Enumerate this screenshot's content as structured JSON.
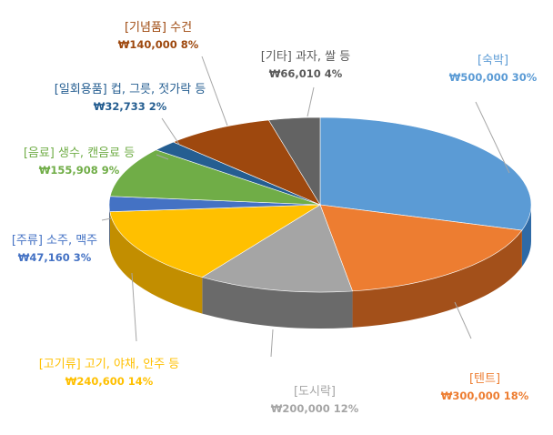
{
  "chart_data": {
    "type": "pie",
    "style": "3d",
    "title": "",
    "legend": "none",
    "slices": [
      {
        "label": "[숙박]",
        "value_text": "₩500,000 30%",
        "value": 500000,
        "percent": 30,
        "color": "#5B9BD5",
        "side_color": "#2E6AA6"
      },
      {
        "label": "[텐트]",
        "value_text": "₩300,000 18%",
        "value": 300000,
        "percent": 18,
        "color": "#ED7D31",
        "side_color": "#A3501A"
      },
      {
        "label": "[도시락]",
        "value_text": "₩200,000 12%",
        "value": 200000,
        "percent": 12,
        "color": "#A5A5A5",
        "side_color": "#6A6A6A"
      },
      {
        "label": "[고기류] 고기, 야채, 안주 등",
        "value_text": "₩240,600 14%",
        "value": 240600,
        "percent": 14,
        "color": "#FFC000",
        "side_color": "#C28E00"
      },
      {
        "label": "[주류] 소주, 맥주",
        "value_text": "₩47,160 3%",
        "value": 47160,
        "percent": 3,
        "color": "#4472C4",
        "side_color": "#2B4C8C"
      },
      {
        "label": "[음료] 생수, 캔음료 등",
        "value_text": "₩155,908 9%",
        "value": 155908,
        "percent": 9,
        "color": "#70AD47",
        "side_color": "#4B7A2E"
      },
      {
        "label": "[일회용품] 컵, 그릇, 젓가락 등",
        "value_text": "₩32,733 2%",
        "value": 32733,
        "percent": 2,
        "color": "#255E91",
        "side_color": "#173E61"
      },
      {
        "label": "[기념품] 수건",
        "value_text": "₩140,000 8%",
        "value": 140000,
        "percent": 8,
        "color": "#9E480E",
        "side_color": "#6B2F08"
      },
      {
        "label": "[기타] 과자, 쌀 등",
        "value_text": "₩66,010 4%",
        "value": 66010,
        "percent": 4,
        "color": "#636363",
        "side_color": "#3F3F3F"
      }
    ]
  }
}
